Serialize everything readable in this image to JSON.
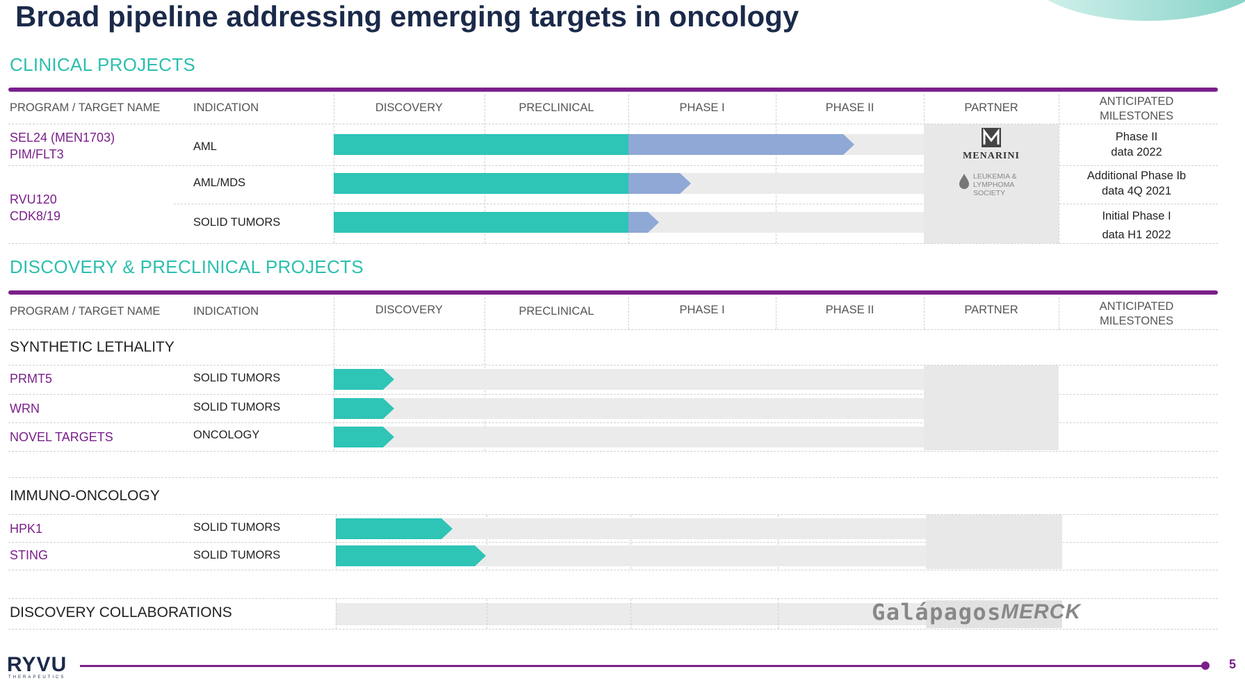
{
  "title": "Broad pipeline addressing emerging targets in oncology",
  "page_number": "5",
  "logo": {
    "name": "RYVU",
    "tagline": "THERAPEUTICS"
  },
  "colors": {
    "teal": "#2ec4b6",
    "purple": "#7a1f8a",
    "blue": "#8fa8d6",
    "navy": "#1b2a4a"
  },
  "columns": {
    "program": "PROGRAM / TARGET NAME",
    "indication": "INDICATION",
    "discovery": "DISCOVERY",
    "preclinical": "PRECLINICAL",
    "phase1": "PHASE I",
    "phase2": "PHASE II",
    "partner": "PARTNER",
    "milestones": "ANTICIPATED MILESTONES"
  },
  "clinical": {
    "heading": "CLINICAL PROJECTS",
    "rows": [
      {
        "program_line1": "SEL24 (MEN1703)",
        "program_line2": "PIM/FLT3",
        "indication": "AML",
        "stage": "Phase II",
        "partner": "MENARINI",
        "milestone_line1": "Phase II",
        "milestone_line2": "data 2022"
      },
      {
        "indication": "AML/MDS",
        "stage": "Phase I",
        "partner": "LEUKEMIA & LYMPHOMA SOCIETY",
        "milestone_line1": "Additional Phase Ib",
        "milestone_line2": "data 4Q 2021"
      },
      {
        "indication": "SOLID TUMORS",
        "stage": "Phase I",
        "milestone_line1": "Initial Phase I",
        "milestone_line2": "data H1 2022"
      }
    ],
    "rvu_program_line1": "RVU120",
    "rvu_program_line2": "CDK8/19",
    "lls_line1": "LEUKEMIA &",
    "lls_line2": "LYMPHOMA",
    "lls_line3": "SOCIETY"
  },
  "discovery": {
    "heading": "DISCOVERY & PRECLINICAL PROJECTS",
    "synthetic_lethality": {
      "label": "SYNTHETIC LETHALITY",
      "rows": [
        {
          "program": "PRMT5",
          "indication": "SOLID TUMORS",
          "stage": "Discovery"
        },
        {
          "program": "WRN",
          "indication": "SOLID TUMORS",
          "stage": "Discovery"
        },
        {
          "program": "NOVEL TARGETS",
          "indication": "ONCOLOGY",
          "stage": "Discovery"
        }
      ]
    },
    "immuno_oncology": {
      "label": "IMMUNO-ONCOLOGY",
      "rows": [
        {
          "program": "HPK1",
          "indication": "SOLID TUMORS",
          "stage": "Discovery"
        },
        {
          "program": "STING",
          "indication": "SOLID TUMORS",
          "stage": "Discovery"
        }
      ]
    },
    "collaborations": {
      "label": "DISCOVERY COLLABORATIONS",
      "partners": [
        "Galápagos",
        "MERCK"
      ]
    }
  }
}
